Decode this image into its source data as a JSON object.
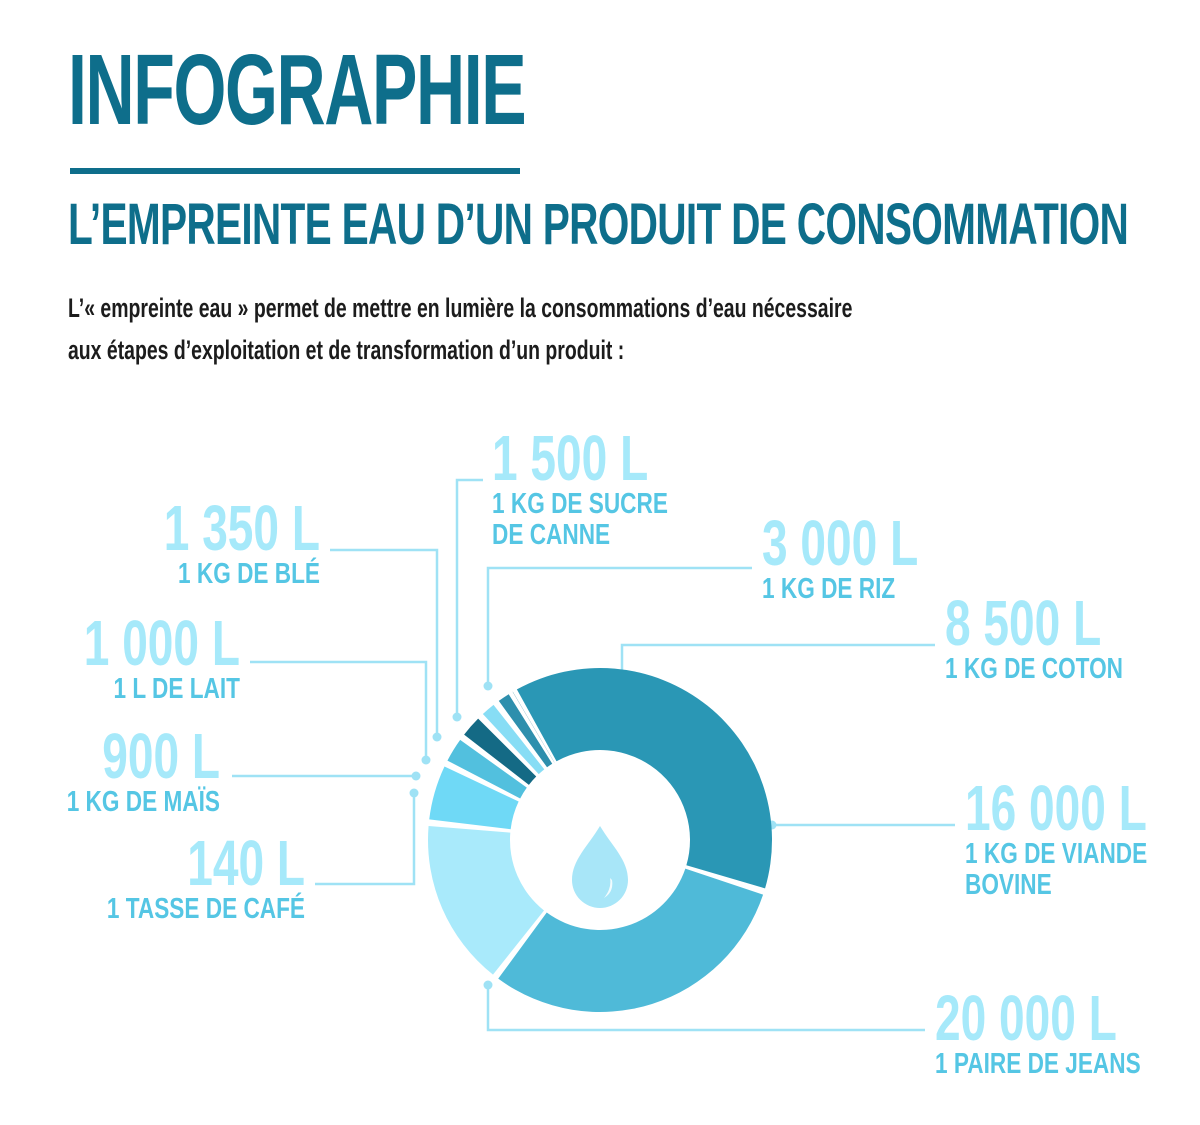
{
  "header": {
    "title": "INFOGRAPHIE",
    "subtitle": "L’EMPREINTE EAU D’UN PRODUIT DE CONSOMMATION",
    "intro_line1": "L’« empreinte eau » permet de mettre en lumière la consommations d’eau nécessaire",
    "intro_line2": "aux étapes d’exploitation et de transformation d’un produit :"
  },
  "colors": {
    "title": "#0e6e8b",
    "callout_value": "#a6e9fa",
    "callout_label": "#55c6e4",
    "leader": "#9fe2f5",
    "drop": "#a8e6f8"
  },
  "center_icon": "water-drop-icon",
  "chart_data": {
    "type": "pie",
    "variant": "donut",
    "unit": "L",
    "slices": [
      {
        "value_label": "20 000 L",
        "label_lines": [
          "1 PAIRE DE JEANS"
        ],
        "value": 20000,
        "color": "#2a97b5"
      },
      {
        "value_label": "16 000 L",
        "label_lines": [
          "1 KG DE VIANDE",
          "BOVINE"
        ],
        "value": 16000,
        "color": "#4fbad8"
      },
      {
        "value_label": "8 500 L",
        "label_lines": [
          "1 KG DE COTON"
        ],
        "value": 8500,
        "color": "#a9eafb"
      },
      {
        "value_label": "3 000 L",
        "label_lines": [
          "1 KG DE RIZ"
        ],
        "value": 3000,
        "color": "#6fd9f6"
      },
      {
        "value_label": "1 500 L",
        "label_lines": [
          "1 KG DE SUCRE",
          "DE CANNE"
        ],
        "value": 1500,
        "color": "#52c0de"
      },
      {
        "value_label": "1 350 L",
        "label_lines": [
          "1 KG DE BLÉ"
        ],
        "value": 1350,
        "color": "#146a85"
      },
      {
        "value_label": "1 000 L",
        "label_lines": [
          "1 L DE LAIT"
        ],
        "value": 1000,
        "color": "#87ddf5"
      },
      {
        "value_label": "900 L",
        "label_lines": [
          "1 KG DE MAÏS"
        ],
        "value": 900,
        "color": "#2e8fad"
      },
      {
        "value_label": "140 L",
        "label_lines": [
          "1 TASSE DE CAFÉ"
        ],
        "value": 140,
        "color": "#1c7896"
      }
    ]
  }
}
